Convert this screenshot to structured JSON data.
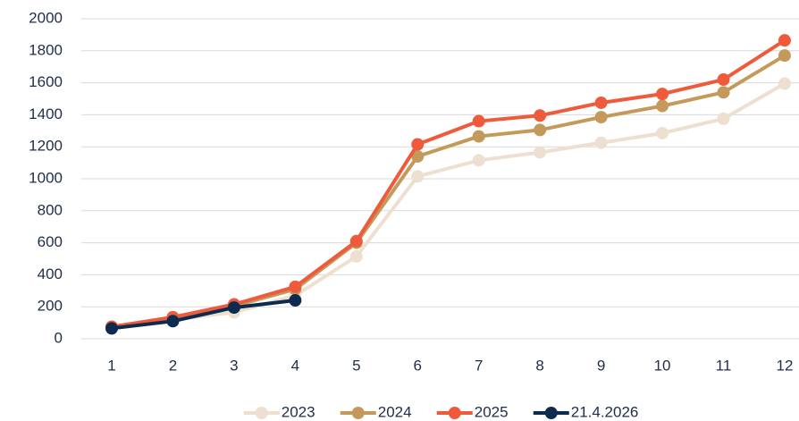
{
  "chart_data": {
    "type": "line",
    "categories": [
      "1",
      "2",
      "3",
      "4",
      "5",
      "6",
      "7",
      "8",
      "9",
      "10",
      "11",
      "12"
    ],
    "series": [
      {
        "name": "2023",
        "color": "#ede0d0",
        "values": [
          70,
          120,
          165,
          270,
          515,
          1015,
          1115,
          1165,
          1225,
          1285,
          1375,
          1595
        ]
      },
      {
        "name": "2024",
        "color": "#c49a5a",
        "values": [
          75,
          130,
          205,
          310,
          600,
          1140,
          1265,
          1305,
          1385,
          1455,
          1540,
          1770
        ]
      },
      {
        "name": "2025",
        "color": "#ee5a3c",
        "values": [
          75,
          135,
          215,
          325,
          610,
          1215,
          1360,
          1395,
          1475,
          1530,
          1620,
          1865
        ]
      },
      {
        "name": "21.4.2026",
        "color": "#0d2a4f",
        "values": [
          65,
          110,
          195,
          240,
          null,
          null,
          null,
          null,
          null,
          null,
          null,
          null
        ]
      }
    ],
    "ylim": [
      0,
      2000
    ],
    "yticks": [
      0,
      200,
      400,
      600,
      800,
      1000,
      1200,
      1400,
      1600,
      1800,
      2000
    ],
    "grid": true,
    "legend": "bottom"
  }
}
